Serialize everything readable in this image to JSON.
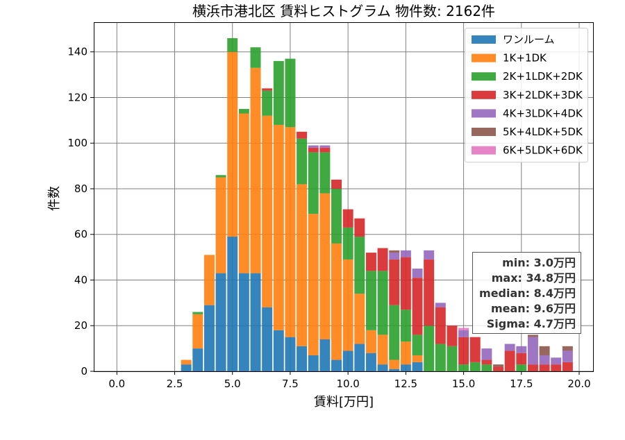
{
  "chart_data": {
    "type": "bar",
    "stacked": true,
    "title": "横浜市港北区 賃料ヒストグラム  物件数: 2162件",
    "xlabel": "賃料[万円]",
    "ylabel": "件数",
    "xlim": [
      -1.0,
      20.6
    ],
    "ylim": [
      0,
      153
    ],
    "bin_width": 0.5,
    "grid": true,
    "legend_position": "top-right",
    "xticks": [
      0.0,
      2.5,
      5.0,
      7.5,
      10.0,
      12.5,
      15.0,
      17.5,
      20.0
    ],
    "xtick_labels": [
      "0.0",
      "2.5",
      "5.0",
      "7.5",
      "10.0",
      "12.5",
      "15.0",
      "17.5",
      "20.0"
    ],
    "yticks": [
      0,
      20,
      40,
      60,
      80,
      100,
      120,
      140
    ],
    "ytick_labels": [
      "0",
      "20",
      "40",
      "60",
      "80",
      "100",
      "120",
      "140"
    ],
    "x": [
      3.0,
      3.5,
      4.0,
      4.5,
      5.0,
      5.5,
      6.0,
      6.5,
      7.0,
      7.5,
      8.0,
      8.5,
      9.0,
      9.5,
      10.0,
      10.5,
      11.0,
      11.5,
      12.0,
      12.5,
      13.0,
      13.5,
      14.0,
      14.5,
      15.0,
      15.5,
      16.0,
      16.5,
      17.0,
      17.5,
      18.0,
      18.5,
      19.0,
      19.5
    ],
    "series": [
      {
        "name": "ワンルーム",
        "color": "#1f77b4",
        "values": [
          3,
          10,
          29,
          43,
          59,
          43,
          43,
          28,
          18,
          15,
          11,
          7,
          14,
          5,
          9,
          12,
          8,
          3,
          1,
          3,
          4,
          0,
          0,
          0,
          0,
          0,
          0,
          0,
          0,
          0,
          0,
          0,
          0,
          0
        ]
      },
      {
        "name": "1K+1DK",
        "color": "#ff7f0e",
        "values": [
          2,
          15,
          22,
          42,
          81,
          70,
          90,
          84,
          90,
          92,
          71,
          62,
          64,
          51,
          40,
          22,
          10,
          13,
          4,
          10,
          3,
          0,
          0,
          0,
          0,
          0,
          0,
          0,
          0,
          0,
          0,
          0,
          0,
          0
        ]
      },
      {
        "name": "2K+1LDK+2DK",
        "color": "#2ca02c",
        "values": [
          0,
          1,
          0,
          1,
          6,
          2,
          9,
          11,
          28,
          30,
          20,
          27,
          18,
          24,
          14,
          25,
          26,
          28,
          24,
          14,
          9,
          20,
          12,
          11,
          3,
          4,
          3,
          0,
          0,
          3,
          0,
          0,
          0,
          0
        ]
      },
      {
        "name": "3K+2LDK+3DK",
        "color": "#d62728",
        "values": [
          0,
          0,
          0,
          0,
          0,
          0,
          0,
          1,
          0,
          0,
          3,
          2,
          2,
          4,
          8,
          8,
          8,
          10,
          20,
          23,
          25,
          29,
          16,
          9,
          12,
          11,
          2,
          2,
          9,
          5,
          3,
          3,
          3,
          4
        ]
      },
      {
        "name": "4K+3LDK+4DK",
        "color": "#9467bd",
        "values": [
          0,
          0,
          0,
          0,
          0,
          0,
          0,
          0,
          0,
          0,
          0,
          1,
          1,
          0,
          0,
          0,
          0,
          0,
          3,
          3,
          4,
          4,
          2,
          0,
          3,
          0,
          5,
          0,
          3,
          3,
          12,
          4,
          3,
          5
        ]
      },
      {
        "name": "5K+4LDK+5DK",
        "color": "#8c564b",
        "values": [
          0,
          0,
          0,
          0,
          0,
          0,
          0,
          0,
          0,
          0,
          0,
          0,
          0,
          0,
          0,
          0,
          0,
          0,
          1,
          0,
          0,
          0,
          0,
          0,
          0,
          0,
          0,
          1,
          0,
          0,
          1,
          4,
          0,
          2
        ]
      },
      {
        "name": "6K+5LDK+6DK",
        "color": "#e377c2",
        "values": [
          0,
          0,
          0,
          0,
          0,
          0,
          0,
          0,
          0,
          0,
          0,
          0,
          0,
          0,
          0,
          0,
          0,
          0,
          0,
          0,
          0,
          0,
          0,
          0,
          1,
          0,
          0,
          0,
          0,
          0,
          0,
          0,
          0,
          0
        ]
      }
    ],
    "stats": {
      "min": "min: 3.0万円",
      "max": "max: 34.8万円",
      "median": "median: 8.4万円",
      "mean": "mean: 9.6万円",
      "sigma": "Sigma: 4.7万円"
    }
  }
}
